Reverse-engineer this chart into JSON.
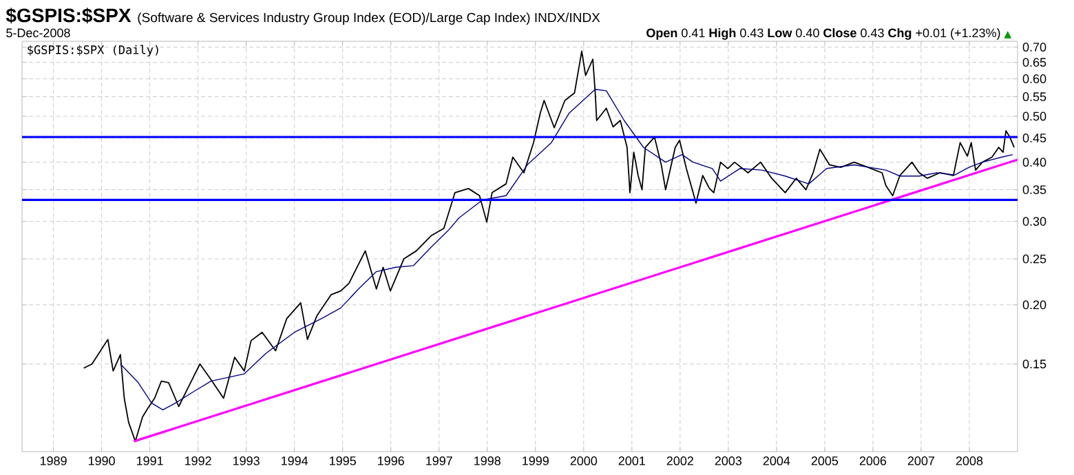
{
  "chart_data": {
    "type": "line",
    "title": "$GSPIS:$SPX",
    "subtitle": "(Software & Services Industry Group Index (EOD)/Large Cap Index) INDX/INDX",
    "annotations": [
      "5-Dec-2008",
      "**Open** 0.41 **High** 0.43 **Low** 0.40 **Close** 0.43 **Chg** +0.01 (+1.23%)",
      "▲"
    ],
    "log": "y",
    "grid": true,
    "legend": "top left",
    "xlim": [
      1988.35,
      2009.0
    ],
    "ylim": [
      0.098,
      0.72
    ],
    "xticks": [
      1989,
      1990,
      1991,
      1992,
      1993,
      1994,
      1995,
      1996,
      1997,
      1998,
      1999,
      2000,
      2001,
      2002,
      2003,
      2004,
      2005,
      2006,
      2007,
      2008
    ],
    "yticks": [
      0.15,
      {
        "value": 0.2,
        "label": "0.20"
      },
      0.25,
      {
        "value": 0.3,
        "label": "0.30"
      },
      0.35,
      {
        "value": 0.4,
        "label": "0.40"
      },
      0.45,
      {
        "value": 0.5,
        "label": "0.50"
      },
      0.55,
      {
        "value": 0.6,
        "label": "0.60"
      },
      0.65,
      {
        "value": 0.7,
        "label": "0.70"
      }
    ],
    "ref_lines": [
      {
        "axis": "y",
        "value": 0.452,
        "color": "#0000ff"
      },
      {
        "axis": "y",
        "value": 0.333,
        "color": "#0000ff"
      }
    ],
    "series": [
      {
        "name": "$GSPIS:$SPX (Daily)",
        "color": "#000000",
        "x": [
          1989.63,
          1989.8,
          1990.13,
          1990.24,
          1990.39,
          1990.47,
          1990.56,
          1990.7,
          1990.85,
          1990.96,
          1991.1,
          1991.24,
          1991.39,
          1991.6,
          1991.8,
          1992.04,
          1992.27,
          1992.53,
          1992.76,
          1992.96,
          1993.1,
          1993.33,
          1993.61,
          1993.84,
          1994.13,
          1994.27,
          1994.47,
          1994.76,
          1994.96,
          1995.13,
          1995.47,
          1995.7,
          1995.84,
          1995.99,
          1996.27,
          1996.53,
          1996.84,
          1997.1,
          1997.33,
          1997.61,
          1997.84,
          1997.99,
          1998.1,
          1998.39,
          1998.53,
          1998.76,
          1998.96,
          1999.1,
          1999.18,
          1999.39,
          1999.61,
          1999.81,
          1999.96,
          2000.04,
          2000.19,
          2000.24,
          2000.27,
          2000.47,
          2000.61,
          2000.76,
          2000.9,
          2000.96,
          2001.04,
          2001.13,
          2001.21,
          2001.28,
          2001.47,
          2001.61,
          2001.7,
          2001.9,
          2001.99,
          2002.13,
          2002.27,
          2002.33,
          2002.47,
          2002.61,
          2002.7,
          2002.84,
          2002.99,
          2003.13,
          2003.41,
          2003.67,
          2003.9,
          2004.18,
          2004.41,
          2004.61,
          2004.76,
          2004.9,
          2005.1,
          2005.33,
          2005.61,
          2005.9,
          2006.19,
          2006.27,
          2006.41,
          2006.56,
          2006.81,
          2006.96,
          2007.13,
          2007.39,
          2007.67,
          2007.81,
          2007.96,
          2008.04,
          2008.13,
          2008.27,
          2008.47,
          2008.61,
          2008.7,
          2008.76,
          2008.84,
          2008.93
        ],
        "values": [
          0.147,
          0.15,
          0.169,
          0.145,
          0.157,
          0.127,
          0.113,
          0.103,
          0.116,
          0.121,
          0.127,
          0.138,
          0.137,
          0.122,
          0.134,
          0.15,
          0.139,
          0.127,
          0.155,
          0.145,
          0.168,
          0.175,
          0.16,
          0.187,
          0.202,
          0.169,
          0.19,
          0.21,
          0.214,
          0.222,
          0.26,
          0.216,
          0.24,
          0.214,
          0.25,
          0.26,
          0.28,
          0.29,
          0.345,
          0.352,
          0.34,
          0.299,
          0.345,
          0.36,
          0.41,
          0.38,
          0.44,
          0.508,
          0.54,
          0.473,
          0.54,
          0.56,
          0.686,
          0.61,
          0.66,
          0.56,
          0.49,
          0.52,
          0.475,
          0.49,
          0.43,
          0.345,
          0.42,
          0.375,
          0.35,
          0.43,
          0.452,
          0.395,
          0.35,
          0.43,
          0.445,
          0.388,
          0.345,
          0.328,
          0.375,
          0.352,
          0.345,
          0.4,
          0.388,
          0.4,
          0.38,
          0.4,
          0.37,
          0.345,
          0.37,
          0.35,
          0.38,
          0.426,
          0.395,
          0.39,
          0.4,
          0.39,
          0.38,
          0.357,
          0.34,
          0.375,
          0.4,
          0.38,
          0.37,
          0.38,
          0.375,
          0.44,
          0.412,
          0.44,
          0.385,
          0.4,
          0.41,
          0.43,
          0.42,
          0.466,
          0.452,
          0.43
        ]
      },
      {
        "color": "#000080",
        "x": [
          1990.39,
          1990.76,
          1991.04,
          1991.27,
          1991.53,
          1991.9,
          1992.27,
          1992.96,
          1993.41,
          1994.0,
          1994.56,
          1994.96,
          1995.33,
          1995.7,
          1996.1,
          1996.47,
          1996.84,
          1997.19,
          1997.41,
          1997.9,
          1998.39,
          1998.84,
          1999.33,
          1999.7,
          2000.24,
          2000.47,
          2000.84,
          2001.24,
          2001.7,
          2002.04,
          2002.27,
          2002.67,
          2002.84,
          2003.24,
          2003.7,
          2004.18,
          2004.67,
          2005.04,
          2005.61,
          2006.27,
          2006.56,
          2006.96,
          2007.33,
          2007.7,
          2007.99,
          2008.27,
          2008.67,
          2008.9
        ],
        "values": [
          0.15,
          0.137,
          0.124,
          0.12,
          0.124,
          0.131,
          0.138,
          0.143,
          0.158,
          0.175,
          0.187,
          0.197,
          0.216,
          0.235,
          0.24,
          0.242,
          0.265,
          0.287,
          0.305,
          0.333,
          0.34,
          0.396,
          0.44,
          0.508,
          0.57,
          0.566,
          0.49,
          0.43,
          0.4,
          0.415,
          0.4,
          0.388,
          0.365,
          0.388,
          0.385,
          0.374,
          0.36,
          0.388,
          0.395,
          0.385,
          0.374,
          0.374,
          0.38,
          0.376,
          0.39,
          0.4,
          0.41,
          0.415
        ]
      },
      {
        "color": "#ff00ff",
        "x": [
          1990.67,
          2009.0
        ],
        "values": [
          0.103,
          0.405
        ]
      }
    ]
  }
}
